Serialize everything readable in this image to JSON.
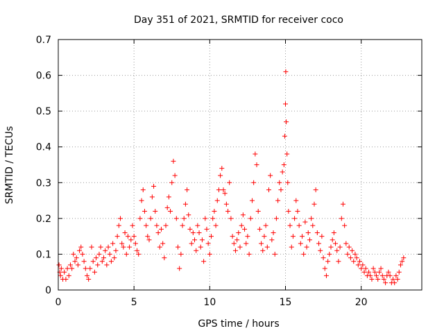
{
  "chart_data": {
    "type": "scatter",
    "title": "Day 351 of 2021, SRMTID for receiver coco",
    "xlabel": "GPS time / hours",
    "ylabel": "SRMTID / TECUs",
    "xlim": [
      0,
      24
    ],
    "ylim": [
      0,
      0.7
    ],
    "x_ticks": [
      0,
      5,
      10,
      15,
      20
    ],
    "y_ticks": [
      0,
      0.1,
      0.2,
      0.3,
      0.4,
      0.5,
      0.6,
      0.7
    ],
    "x_tick_labels": [
      "0",
      "5",
      "10",
      "15",
      "20"
    ],
    "y_tick_labels": [
      "0",
      "0.1",
      "0.2",
      "0.3",
      "0.4",
      "0.5",
      "0.6",
      "0.7"
    ],
    "grid": true,
    "marker": "+",
    "marker_color": "#ff0000",
    "series": [
      {
        "name": "SRMTID",
        "points": [
          [
            0.05,
            0.07
          ],
          [
            0.1,
            0.05
          ],
          [
            0.15,
            0.04
          ],
          [
            0.2,
            0.06
          ],
          [
            0.3,
            0.03
          ],
          [
            0.4,
            0.05
          ],
          [
            0.5,
            0.03
          ],
          [
            0.6,
            0.06
          ],
          [
            0.7,
            0.04
          ],
          [
            0.8,
            0.07
          ],
          [
            0.9,
            0.06
          ],
          [
            1.0,
            0.1
          ],
          [
            1.1,
            0.08
          ],
          [
            1.2,
            0.09
          ],
          [
            1.3,
            0.07
          ],
          [
            1.4,
            0.11
          ],
          [
            1.5,
            0.12
          ],
          [
            1.6,
            0.1
          ],
          [
            1.7,
            0.08
          ],
          [
            1.8,
            0.06
          ],
          [
            1.9,
            0.04
          ],
          [
            2.0,
            0.03
          ],
          [
            2.1,
            0.06
          ],
          [
            2.2,
            0.12
          ],
          [
            2.3,
            0.08
          ],
          [
            2.4,
            0.05
          ],
          [
            2.5,
            0.09
          ],
          [
            2.6,
            0.07
          ],
          [
            2.7,
            0.1
          ],
          [
            2.8,
            0.12
          ],
          [
            2.9,
            0.08
          ],
          [
            3.0,
            0.09
          ],
          [
            3.1,
            0.11
          ],
          [
            3.2,
            0.07
          ],
          [
            3.3,
            0.12
          ],
          [
            3.4,
            0.1
          ],
          [
            3.5,
            0.08
          ],
          [
            3.6,
            0.13
          ],
          [
            3.7,
            0.09
          ],
          [
            3.8,
            0.11
          ],
          [
            3.9,
            0.15
          ],
          [
            4.0,
            0.18
          ],
          [
            4.1,
            0.2
          ],
          [
            4.2,
            0.13
          ],
          [
            4.3,
            0.12
          ],
          [
            4.4,
            0.16
          ],
          [
            4.5,
            0.1
          ],
          [
            4.6,
            0.15
          ],
          [
            4.7,
            0.12
          ],
          [
            4.8,
            0.14
          ],
          [
            4.9,
            0.18
          ],
          [
            5.0,
            0.15
          ],
          [
            5.1,
            0.13
          ],
          [
            5.2,
            0.11
          ],
          [
            5.3,
            0.1
          ],
          [
            5.4,
            0.2
          ],
          [
            5.5,
            0.25
          ],
          [
            5.6,
            0.28
          ],
          [
            5.7,
            0.22
          ],
          [
            5.8,
            0.18
          ],
          [
            5.9,
            0.15
          ],
          [
            6.0,
            0.14
          ],
          [
            6.1,
            0.2
          ],
          [
            6.2,
            0.26
          ],
          [
            6.3,
            0.29
          ],
          [
            6.4,
            0.22
          ],
          [
            6.5,
            0.18
          ],
          [
            6.6,
            0.16
          ],
          [
            6.7,
            0.12
          ],
          [
            6.8,
            0.17
          ],
          [
            6.9,
            0.13
          ],
          [
            7.0,
            0.09
          ],
          [
            7.1,
            0.18
          ],
          [
            7.2,
            0.23
          ],
          [
            7.3,
            0.26
          ],
          [
            7.4,
            0.22
          ],
          [
            7.5,
            0.3
          ],
          [
            7.6,
            0.36
          ],
          [
            7.7,
            0.32
          ],
          [
            7.8,
            0.2
          ],
          [
            7.9,
            0.12
          ],
          [
            8.0,
            0.06
          ],
          [
            8.1,
            0.1
          ],
          [
            8.2,
            0.18
          ],
          [
            8.3,
            0.2
          ],
          [
            8.4,
            0.24
          ],
          [
            8.5,
            0.28
          ],
          [
            8.6,
            0.21
          ],
          [
            8.7,
            0.17
          ],
          [
            8.8,
            0.13
          ],
          [
            8.9,
            0.16
          ],
          [
            9.0,
            0.14
          ],
          [
            9.1,
            0.11
          ],
          [
            9.2,
            0.18
          ],
          [
            9.3,
            0.16
          ],
          [
            9.4,
            0.12
          ],
          [
            9.5,
            0.14
          ],
          [
            9.6,
            0.08
          ],
          [
            9.7,
            0.2
          ],
          [
            9.8,
            0.17
          ],
          [
            9.9,
            0.13
          ],
          [
            10.0,
            0.1
          ],
          [
            10.1,
            0.15
          ],
          [
            10.2,
            0.2
          ],
          [
            10.3,
            0.22
          ],
          [
            10.4,
            0.18
          ],
          [
            10.5,
            0.25
          ],
          [
            10.6,
            0.28
          ],
          [
            10.7,
            0.32
          ],
          [
            10.8,
            0.34
          ],
          [
            10.9,
            0.28
          ],
          [
            11.0,
            0.27
          ],
          [
            11.1,
            0.24
          ],
          [
            11.2,
            0.22
          ],
          [
            11.3,
            0.3
          ],
          [
            11.4,
            0.2
          ],
          [
            11.5,
            0.15
          ],
          [
            11.6,
            0.13
          ],
          [
            11.7,
            0.11
          ],
          [
            11.8,
            0.14
          ],
          [
            11.9,
            0.16
          ],
          [
            12.0,
            0.12
          ],
          [
            12.1,
            0.18
          ],
          [
            12.2,
            0.21
          ],
          [
            12.3,
            0.17
          ],
          [
            12.4,
            0.13
          ],
          [
            12.5,
            0.15
          ],
          [
            12.6,
            0.1
          ],
          [
            12.7,
            0.2
          ],
          [
            12.8,
            0.25
          ],
          [
            12.9,
            0.3
          ],
          [
            13.0,
            0.38
          ],
          [
            13.1,
            0.35
          ],
          [
            13.2,
            0.22
          ],
          [
            13.3,
            0.17
          ],
          [
            13.4,
            0.13
          ],
          [
            13.5,
            0.11
          ],
          [
            13.6,
            0.15
          ],
          [
            13.7,
            0.18
          ],
          [
            13.8,
            0.12
          ],
          [
            13.9,
            0.28
          ],
          [
            14.0,
            0.32
          ],
          [
            14.1,
            0.14
          ],
          [
            14.2,
            0.16
          ],
          [
            14.3,
            0.1
          ],
          [
            14.4,
            0.2
          ],
          [
            14.5,
            0.25
          ],
          [
            14.6,
            0.3
          ],
          [
            14.7,
            0.28
          ],
          [
            14.8,
            0.33
          ],
          [
            14.9,
            0.35
          ],
          [
            14.95,
            0.43
          ],
          [
            15.0,
            0.52
          ],
          [
            15.02,
            0.61
          ],
          [
            15.05,
            0.47
          ],
          [
            15.1,
            0.38
          ],
          [
            15.15,
            0.3
          ],
          [
            15.2,
            0.22
          ],
          [
            15.3,
            0.18
          ],
          [
            15.4,
            0.12
          ],
          [
            15.5,
            0.15
          ],
          [
            15.6,
            0.2
          ],
          [
            15.7,
            0.25
          ],
          [
            15.8,
            0.22
          ],
          [
            15.9,
            0.18
          ],
          [
            16.0,
            0.13
          ],
          [
            16.1,
            0.15
          ],
          [
            16.2,
            0.1
          ],
          [
            16.3,
            0.19
          ],
          [
            16.4,
            0.12
          ],
          [
            16.5,
            0.16
          ],
          [
            16.6,
            0.14
          ],
          [
            16.7,
            0.2
          ],
          [
            16.8,
            0.18
          ],
          [
            16.9,
            0.24
          ],
          [
            17.0,
            0.28
          ],
          [
            17.1,
            0.16
          ],
          [
            17.2,
            0.13
          ],
          [
            17.3,
            0.11
          ],
          [
            17.4,
            0.15
          ],
          [
            17.5,
            0.09
          ],
          [
            17.6,
            0.06
          ],
          [
            17.7,
            0.04
          ],
          [
            17.8,
            0.08
          ],
          [
            17.9,
            0.1
          ],
          [
            18.0,
            0.12
          ],
          [
            18.1,
            0.14
          ],
          [
            18.2,
            0.16
          ],
          [
            18.3,
            0.13
          ],
          [
            18.4,
            0.11
          ],
          [
            18.5,
            0.08
          ],
          [
            18.6,
            0.12
          ],
          [
            18.7,
            0.2
          ],
          [
            18.8,
            0.24
          ],
          [
            18.9,
            0.18
          ],
          [
            19.0,
            0.13
          ],
          [
            19.1,
            0.1
          ],
          [
            19.2,
            0.12
          ],
          [
            19.3,
            0.09
          ],
          [
            19.4,
            0.11
          ],
          [
            19.5,
            0.08
          ],
          [
            19.6,
            0.1
          ],
          [
            19.7,
            0.09
          ],
          [
            19.8,
            0.07
          ],
          [
            19.9,
            0.08
          ],
          [
            20.0,
            0.06
          ],
          [
            20.1,
            0.07
          ],
          [
            20.2,
            0.05
          ],
          [
            20.3,
            0.06
          ],
          [
            20.4,
            0.04
          ],
          [
            20.5,
            0.05
          ],
          [
            20.6,
            0.04
          ],
          [
            20.7,
            0.03
          ],
          [
            20.8,
            0.06
          ],
          [
            20.9,
            0.05
          ],
          [
            21.0,
            0.04
          ],
          [
            21.1,
            0.03
          ],
          [
            21.2,
            0.05
          ],
          [
            21.3,
            0.06
          ],
          [
            21.4,
            0.04
          ],
          [
            21.5,
            0.03
          ],
          [
            21.6,
            0.02
          ],
          [
            21.7,
            0.04
          ],
          [
            21.8,
            0.05
          ],
          [
            21.9,
            0.04
          ],
          [
            22.0,
            0.02
          ],
          [
            22.1,
            0.03
          ],
          [
            22.2,
            0.02
          ],
          [
            22.3,
            0.04
          ],
          [
            22.4,
            0.03
          ],
          [
            22.5,
            0.05
          ],
          [
            22.6,
            0.07
          ],
          [
            22.7,
            0.08
          ],
          [
            22.8,
            0.09
          ]
        ]
      }
    ]
  }
}
